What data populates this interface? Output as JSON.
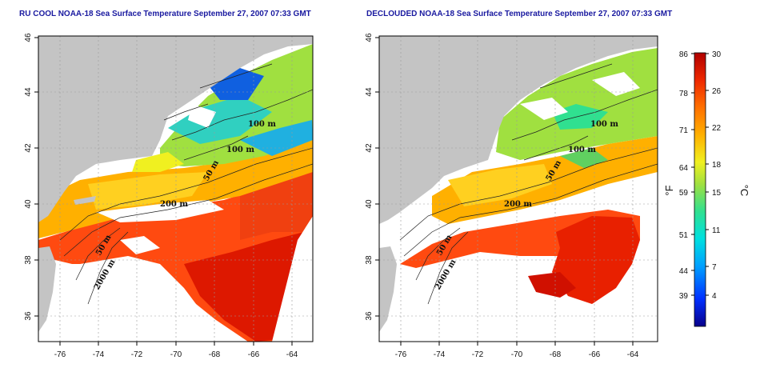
{
  "maps": [
    {
      "title": "RU COOL NOAA-18 Sea Surface Temperature September 27, 2007 07:33 GMT",
      "contour_labels": [
        "100 m",
        "100 m",
        "50 m",
        "200 m",
        "50 m",
        "2000 m"
      ]
    },
    {
      "title": "DECLOUDED NOAA-18 Sea Surface Temperature September 27, 2007 07:33 GMT",
      "contour_labels": [
        "100 m",
        "100 m",
        "50 m",
        "200 m",
        "50 m",
        "2000 m"
      ]
    }
  ],
  "axes": {
    "lon_ticks": [
      "-76",
      "-74",
      "-72",
      "-70",
      "-68",
      "-66",
      "-64"
    ],
    "lat_ticks": [
      "36",
      "38",
      "40",
      "42",
      "44",
      "46"
    ]
  },
  "colorbar": {
    "fahrenheit_ticks": [
      "86",
      "78",
      "71",
      "64",
      "59",
      "51",
      "44",
      "39"
    ],
    "celsius_ticks": [
      "30",
      "26",
      "22",
      "18",
      "15",
      "11",
      "7",
      "4"
    ],
    "fahrenheit_unit": "°F",
    "celsius_unit": "°C",
    "colors": [
      "#08008a",
      "#0030ff",
      "#00a0ff",
      "#00e0e0",
      "#30e090",
      "#a0e040",
      "#f0f020",
      "#ffb000",
      "#ff7000",
      "#ee2800",
      "#b00000"
    ]
  },
  "colors": {
    "land": "#c4c4c4",
    "ocean_no_data": "#ffffff",
    "title": "#1a1aa0"
  }
}
